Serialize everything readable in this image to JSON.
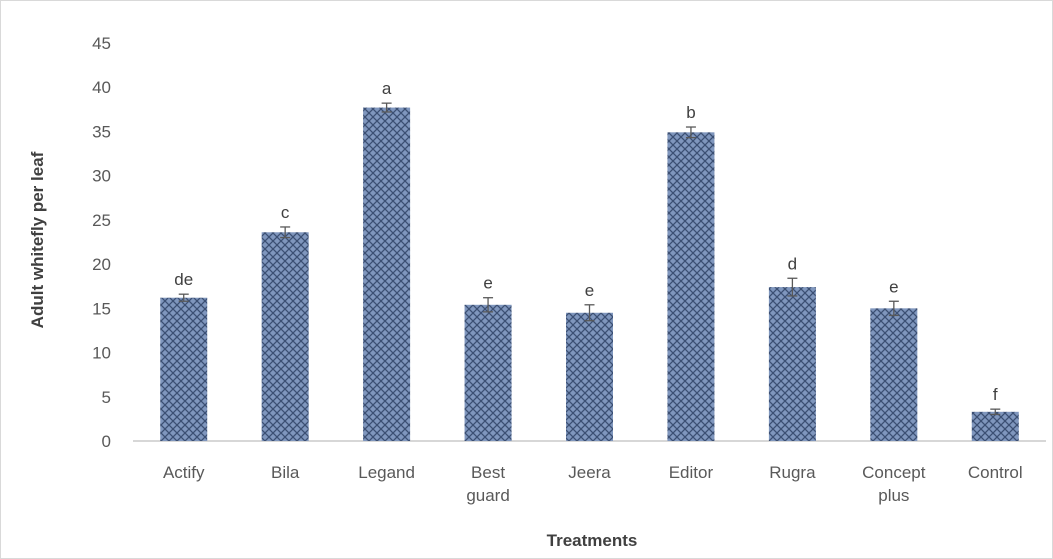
{
  "chart_data": {
    "type": "bar",
    "xlabel": "Treatments",
    "ylabel": "Adult whitefly per leaf",
    "ylim": [
      0,
      45
    ],
    "yticks": [
      0,
      5,
      10,
      15,
      20,
      25,
      30,
      35,
      40,
      45
    ],
    "grid": false,
    "categories": [
      [
        "Actify"
      ],
      [
        "Bila"
      ],
      [
        "Legand"
      ],
      [
        "Best",
        "guard"
      ],
      [
        "Jeera"
      ],
      [
        "Editor"
      ],
      [
        "Rugra"
      ],
      [
        "Concept",
        "plus"
      ],
      [
        "Control"
      ]
    ],
    "values": [
      16.2,
      23.6,
      37.7,
      15.4,
      14.5,
      34.9,
      17.4,
      15.0,
      3.3
    ],
    "errors": [
      0.4,
      0.6,
      0.5,
      0.8,
      0.9,
      0.6,
      1.0,
      0.8,
      0.3
    ],
    "significance_letters": [
      "de",
      "c",
      "a",
      "e",
      "e",
      "b",
      "d",
      "e",
      "f"
    ],
    "bar_color": "#7f96bd",
    "bar_pattern_color": "#3b4f73",
    "axis_color": "#bfbfbf"
  }
}
